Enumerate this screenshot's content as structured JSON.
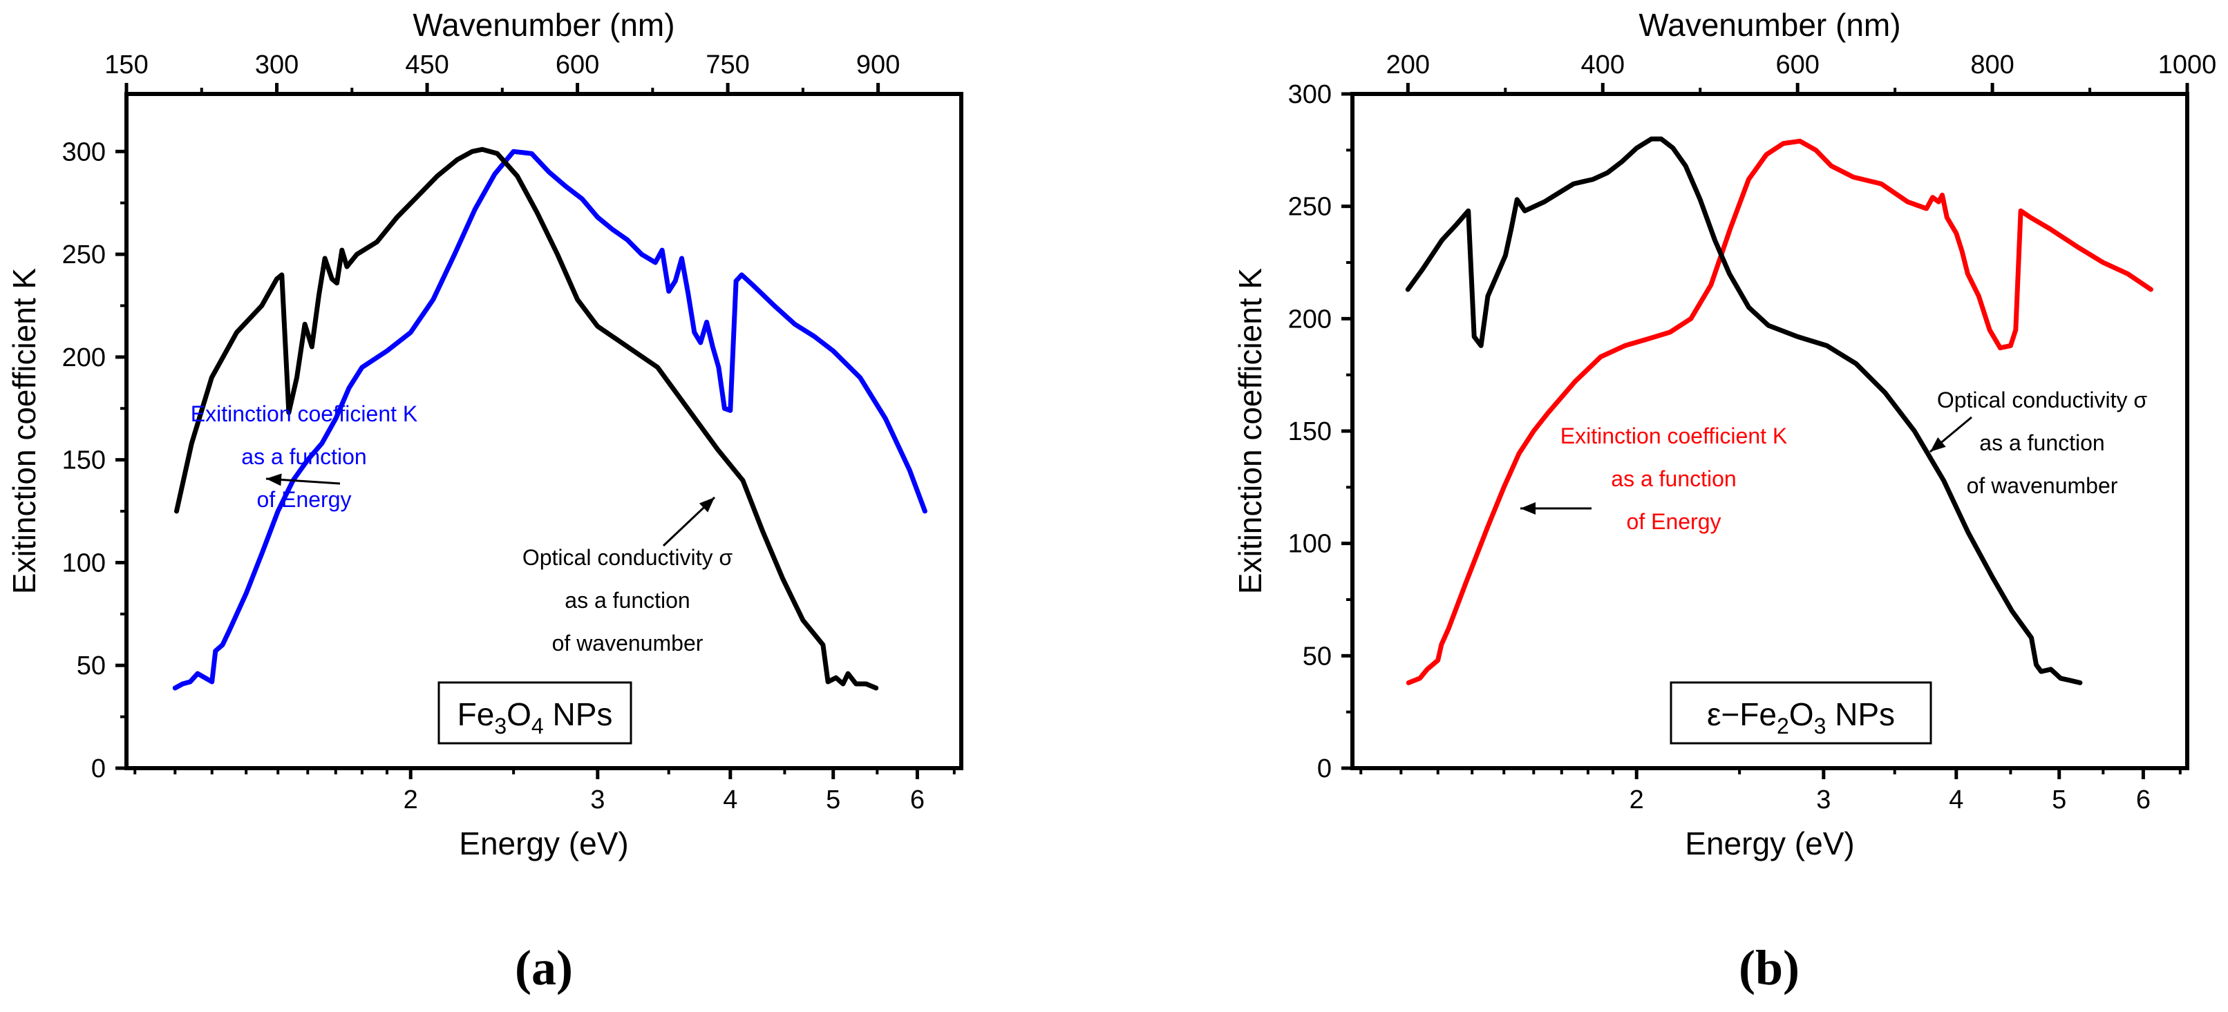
{
  "chart_data": [
    {
      "type": "line",
      "panel_label": "(a)",
      "xlabel": "Energy (eV)",
      "ylabel": "Exitinction coefficient K",
      "top_xlabel": "Wavenumber (nm)",
      "x_scale": "log",
      "xlim": [
        1.08,
        6.6
      ],
      "ylim": [
        0,
        328
      ],
      "x_ticks": [
        2,
        3,
        4,
        5,
        6
      ],
      "y_ticks": [
        0,
        50,
        100,
        150,
        200,
        250,
        300
      ],
      "top_ticks": [
        150,
        300,
        450,
        600,
        750,
        900
      ],
      "top_axis_linear_range": [
        150,
        983
      ],
      "grid": false,
      "inset_label": {
        "pre": "Fe",
        "sub1": "3",
        "mid": "O",
        "sub2": "4",
        "post": " NPs"
      },
      "annotations": {
        "energy": {
          "lines": [
            "Exitinction coefficient K",
            "as a function",
            "of Energy"
          ],
          "color": "#0000ff"
        },
        "wavenumber": {
          "lines": [
            "Optical conductivity σ",
            "as a function",
            "of wavenumber"
          ],
          "color": "#000000"
        }
      },
      "series": [
        {
          "color": "#0000ff",
          "axis": "energy",
          "points": [
            [
              1.2,
              39
            ],
            [
              1.22,
              41
            ],
            [
              1.24,
              42
            ],
            [
              1.26,
              46
            ],
            [
              1.28,
              44
            ],
            [
              1.3,
              42
            ],
            [
              1.31,
              57
            ],
            [
              1.33,
              60
            ],
            [
              1.35,
              67
            ],
            [
              1.4,
              85
            ],
            [
              1.45,
              105
            ],
            [
              1.5,
              125
            ],
            [
              1.55,
              140
            ],
            [
              1.6,
              150
            ],
            [
              1.65,
              158
            ],
            [
              1.7,
              170
            ],
            [
              1.75,
              185
            ],
            [
              1.8,
              195
            ],
            [
              1.9,
              203
            ],
            [
              2.0,
              212
            ],
            [
              2.1,
              228
            ],
            [
              2.2,
              250
            ],
            [
              2.3,
              272
            ],
            [
              2.4,
              289
            ],
            [
              2.5,
              300
            ],
            [
              2.6,
              299
            ],
            [
              2.7,
              290
            ],
            [
              2.8,
              283
            ],
            [
              2.9,
              277
            ],
            [
              3.0,
              268
            ],
            [
              3.1,
              262
            ],
            [
              3.2,
              257
            ],
            [
              3.3,
              250
            ],
            [
              3.4,
              246
            ],
            [
              3.45,
              252
            ],
            [
              3.5,
              232
            ],
            [
              3.55,
              237
            ],
            [
              3.6,
              248
            ],
            [
              3.65,
              231
            ],
            [
              3.7,
              212
            ],
            [
              3.75,
              207
            ],
            [
              3.8,
              217
            ],
            [
              3.85,
              205
            ],
            [
              3.9,
              195
            ],
            [
              3.95,
              175
            ],
            [
              4.0,
              174
            ],
            [
              4.05,
              237
            ],
            [
              4.1,
              240
            ],
            [
              4.2,
              235
            ],
            [
              4.4,
              225
            ],
            [
              4.6,
              216
            ],
            [
              4.8,
              210
            ],
            [
              5.0,
              203
            ],
            [
              5.3,
              190
            ],
            [
              5.6,
              170
            ],
            [
              5.9,
              145
            ],
            [
              6.1,
              125
            ]
          ]
        },
        {
          "color": "#000000",
          "axis": "wavenumber",
          "points": [
            [
              200,
              125
            ],
            [
              215,
              158
            ],
            [
              235,
              190
            ],
            [
              260,
              212
            ],
            [
              285,
              225
            ],
            [
              300,
              238
            ],
            [
              305,
              240
            ],
            [
              312,
              173
            ],
            [
              320,
              190
            ],
            [
              328,
              216
            ],
            [
              335,
              205
            ],
            [
              342,
              230
            ],
            [
              348,
              248
            ],
            [
              355,
              238
            ],
            [
              360,
              236
            ],
            [
              365,
              252
            ],
            [
              370,
              244
            ],
            [
              380,
              250
            ],
            [
              400,
              256
            ],
            [
              420,
              268
            ],
            [
              440,
              278
            ],
            [
              460,
              288
            ],
            [
              480,
              296
            ],
            [
              495,
              300
            ],
            [
              505,
              301
            ],
            [
              520,
              299
            ],
            [
              540,
              288
            ],
            [
              560,
              270
            ],
            [
              580,
              250
            ],
            [
              600,
              228
            ],
            [
              620,
              215
            ],
            [
              650,
              205
            ],
            [
              680,
              195
            ],
            [
              710,
              175
            ],
            [
              740,
              155
            ],
            [
              765,
              140
            ],
            [
              785,
              115
            ],
            [
              805,
              92
            ],
            [
              825,
              72
            ],
            [
              845,
              60
            ],
            [
              850,
              42
            ],
            [
              858,
              44
            ],
            [
              865,
              41
            ],
            [
              870,
              46
            ],
            [
              878,
              41
            ],
            [
              888,
              41
            ],
            [
              898,
              39
            ]
          ]
        }
      ]
    },
    {
      "type": "line",
      "panel_label": "(b)",
      "xlabel": "Energy (eV)",
      "ylabel": "Exitinction coefficient K",
      "top_xlabel": "Wavenumber (nm)",
      "x_scale": "log",
      "xlim": [
        1.08,
        6.6
      ],
      "ylim": [
        0,
        300
      ],
      "x_ticks": [
        2,
        3,
        4,
        5,
        6
      ],
      "y_ticks": [
        0,
        50,
        100,
        150,
        200,
        250,
        300
      ],
      "top_ticks": [
        200,
        400,
        600,
        800,
        1000
      ],
      "top_axis_linear_range": [
        143,
        1000
      ],
      "grid": false,
      "inset_label": {
        "pre": "ε−Fe",
        "sub1": "2",
        "mid": "O",
        "sub2": "3",
        "post": " NPs"
      },
      "annotations": {
        "energy": {
          "lines": [
            "Exitinction coefficient K",
            "as a function",
            "of Energy"
          ],
          "color": "#ff0000"
        },
        "wavenumber": {
          "lines": [
            "Optical conductivity σ",
            "as a function",
            "of wavenumber"
          ],
          "color": "#000000"
        }
      },
      "series": [
        {
          "color": "#ff0000",
          "axis": "energy",
          "points": [
            [
              1.22,
              38
            ],
            [
              1.25,
              40
            ],
            [
              1.27,
              44
            ],
            [
              1.3,
              48
            ],
            [
              1.31,
              55
            ],
            [
              1.33,
              62
            ],
            [
              1.38,
              82
            ],
            [
              1.45,
              108
            ],
            [
              1.5,
              125
            ],
            [
              1.55,
              140
            ],
            [
              1.6,
              150
            ],
            [
              1.65,
              158
            ],
            [
              1.75,
              172
            ],
            [
              1.85,
              183
            ],
            [
              1.95,
              188
            ],
            [
              2.05,
              191
            ],
            [
              2.15,
              194
            ],
            [
              2.25,
              200
            ],
            [
              2.35,
              215
            ],
            [
              2.45,
              240
            ],
            [
              2.55,
              262
            ],
            [
              2.65,
              273
            ],
            [
              2.75,
              278
            ],
            [
              2.85,
              279
            ],
            [
              2.95,
              275
            ],
            [
              3.05,
              268
            ],
            [
              3.2,
              263
            ],
            [
              3.4,
              260
            ],
            [
              3.6,
              252
            ],
            [
              3.75,
              249
            ],
            [
              3.8,
              254
            ],
            [
              3.85,
              252
            ],
            [
              3.88,
              255
            ],
            [
              3.92,
              245
            ],
            [
              4.0,
              238
            ],
            [
              4.05,
              230
            ],
            [
              4.1,
              220
            ],
            [
              4.2,
              210
            ],
            [
              4.3,
              195
            ],
            [
              4.4,
              187
            ],
            [
              4.5,
              188
            ],
            [
              4.55,
              195
            ],
            [
              4.6,
              248
            ],
            [
              4.7,
              245
            ],
            [
              4.9,
              240
            ],
            [
              5.2,
              232
            ],
            [
              5.5,
              225
            ],
            [
              5.8,
              220
            ],
            [
              6.1,
              213
            ]
          ]
        },
        {
          "color": "#000000",
          "axis": "wavenumber",
          "points": [
            [
              200,
              213
            ],
            [
              215,
              222
            ],
            [
              235,
              235
            ],
            [
              250,
              242
            ],
            [
              262,
              248
            ],
            [
              268,
              192
            ],
            [
              275,
              188
            ],
            [
              282,
              210
            ],
            [
              290,
              218
            ],
            [
              300,
              228
            ],
            [
              306,
              240
            ],
            [
              312,
              253
            ],
            [
              320,
              248
            ],
            [
              330,
              250
            ],
            [
              340,
              252
            ],
            [
              355,
              256
            ],
            [
              370,
              260
            ],
            [
              390,
              262
            ],
            [
              405,
              265
            ],
            [
              420,
              270
            ],
            [
              435,
              276
            ],
            [
              450,
              280
            ],
            [
              460,
              280
            ],
            [
              472,
              276
            ],
            [
              485,
              268
            ],
            [
              500,
              253
            ],
            [
              515,
              235
            ],
            [
              530,
              220
            ],
            [
              550,
              205
            ],
            [
              570,
              197
            ],
            [
              600,
              192
            ],
            [
              630,
              188
            ],
            [
              660,
              180
            ],
            [
              690,
              167
            ],
            [
              720,
              150
            ],
            [
              750,
              128
            ],
            [
              775,
              105
            ],
            [
              800,
              85
            ],
            [
              820,
              70
            ],
            [
              840,
              58
            ],
            [
              845,
              46
            ],
            [
              850,
              43
            ],
            [
              860,
              44
            ],
            [
              870,
              40
            ],
            [
              880,
              39
            ],
            [
              890,
              38
            ]
          ]
        }
      ]
    }
  ]
}
